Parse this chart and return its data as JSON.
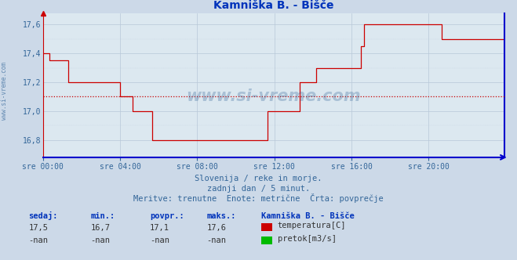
{
  "title": "Kamniška B. - Bišče",
  "bg_color": "#ccd9e8",
  "plot_bg_color": "#dce8f0",
  "line_color": "#cc0000",
  "grid_color": "#b8c8d8",
  "avg_line_color": "#cc0000",
  "avg_value": 17.1,
  "text_color": "#336699",
  "title_color": "#0033bb",
  "ylim": [
    16.68,
    17.68
  ],
  "yticks": [
    16.8,
    17.0,
    17.2,
    17.4,
    17.6
  ],
  "xtick_labels": [
    "sre 00:00",
    "sre 04:00",
    "sre 08:00",
    "sre 12:00",
    "sre 16:00",
    "sre 20:00"
  ],
  "subtitle_lines": [
    "Slovenija / reke in morje.",
    "zadnji dan / 5 minut.",
    "Meritve: trenutne  Enote: metrične  Črta: povprečje"
  ],
  "stat_label_color": "#0033bb",
  "sedaj": "17,5",
  "min_val": "16,7",
  "povpr": "17,1",
  "maks": "17,6",
  "station_name": "Kamniška B. - Bišče",
  "temp_label": "temperatura[C]",
  "pretok_label": "pretok[m3/s]",
  "temp_color": "#cc0000",
  "pretok_color": "#00bb00",
  "watermark_text": "www.si-vreme.com",
  "watermark_color": "#336699",
  "watermark_alpha": 0.3,
  "left_text": "www.si-vreme.com",
  "temperature_data": [
    17.4,
    17.4,
    17.4,
    17.4,
    17.35,
    17.35,
    17.35,
    17.35,
    17.35,
    17.35,
    17.35,
    17.35,
    17.35,
    17.35,
    17.35,
    17.35,
    17.2,
    17.2,
    17.2,
    17.2,
    17.2,
    17.2,
    17.2,
    17.2,
    17.2,
    17.2,
    17.2,
    17.2,
    17.2,
    17.2,
    17.2,
    17.2,
    17.2,
    17.2,
    17.2,
    17.2,
    17.2,
    17.2,
    17.2,
    17.2,
    17.2,
    17.2,
    17.2,
    17.2,
    17.2,
    17.2,
    17.2,
    17.2,
    17.1,
    17.1,
    17.1,
    17.1,
    17.1,
    17.1,
    17.1,
    17.1,
    17.0,
    17.0,
    17.0,
    17.0,
    17.0,
    17.0,
    17.0,
    17.0,
    17.0,
    17.0,
    17.0,
    17.0,
    16.8,
    16.8,
    16.8,
    16.8,
    16.8,
    16.8,
    16.8,
    16.8,
    16.8,
    16.8,
    16.8,
    16.8,
    16.8,
    16.8,
    16.8,
    16.8,
    16.8,
    16.8,
    16.8,
    16.8,
    16.8,
    16.8,
    16.8,
    16.8,
    16.8,
    16.8,
    16.8,
    16.8,
    16.8,
    16.8,
    16.8,
    16.8,
    16.8,
    16.8,
    16.8,
    16.8,
    16.8,
    16.8,
    16.8,
    16.8,
    16.8,
    16.8,
    16.8,
    16.8,
    16.8,
    16.8,
    16.8,
    16.8,
    16.8,
    16.8,
    16.8,
    16.8,
    16.8,
    16.8,
    16.8,
    16.8,
    16.8,
    16.8,
    16.8,
    16.8,
    16.8,
    16.8,
    16.8,
    16.8,
    16.8,
    16.8,
    16.8,
    16.8,
    16.8,
    16.8,
    16.8,
    16.8,
    17.0,
    17.0,
    17.0,
    17.0,
    17.0,
    17.0,
    17.0,
    17.0,
    17.0,
    17.0,
    17.0,
    17.0,
    17.0,
    17.0,
    17.0,
    17.0,
    17.0,
    17.0,
    17.0,
    17.0,
    17.2,
    17.2,
    17.2,
    17.2,
    17.2,
    17.2,
    17.2,
    17.2,
    17.2,
    17.2,
    17.3,
    17.3,
    17.3,
    17.3,
    17.3,
    17.3,
    17.3,
    17.3,
    17.3,
    17.3,
    17.3,
    17.3,
    17.3,
    17.3,
    17.3,
    17.3,
    17.3,
    17.3,
    17.3,
    17.3,
    17.3,
    17.3,
    17.3,
    17.3,
    17.3,
    17.3,
    17.3,
    17.3,
    17.45,
    17.45,
    17.6,
    17.6,
    17.6,
    17.6,
    17.6,
    17.6,
    17.6,
    17.6,
    17.6,
    17.6,
    17.6,
    17.6,
    17.6,
    17.6,
    17.6,
    17.6,
    17.6,
    17.6,
    17.6,
    17.6,
    17.6,
    17.6,
    17.6,
    17.6,
    17.6,
    17.6,
    17.6,
    17.6,
    17.6,
    17.6,
    17.6,
    17.6,
    17.6,
    17.6,
    17.6,
    17.6,
    17.6,
    17.6,
    17.6,
    17.6,
    17.6,
    17.6,
    17.6,
    17.6,
    17.6,
    17.6,
    17.6,
    17.6,
    17.5,
    17.5,
    17.5,
    17.5,
    17.5,
    17.5,
    17.5,
    17.5,
    17.5,
    17.5,
    17.5,
    17.5,
    17.5,
    17.5,
    17.5,
    17.5,
    17.5,
    17.5,
    17.5,
    17.5,
    17.5,
    17.5,
    17.5,
    17.5,
    17.5,
    17.5,
    17.5,
    17.5,
    17.5,
    17.5,
    17.5,
    17.5,
    17.5,
    17.5,
    17.5,
    17.5,
    17.5,
    17.5,
    17.5,
    17.5
  ]
}
